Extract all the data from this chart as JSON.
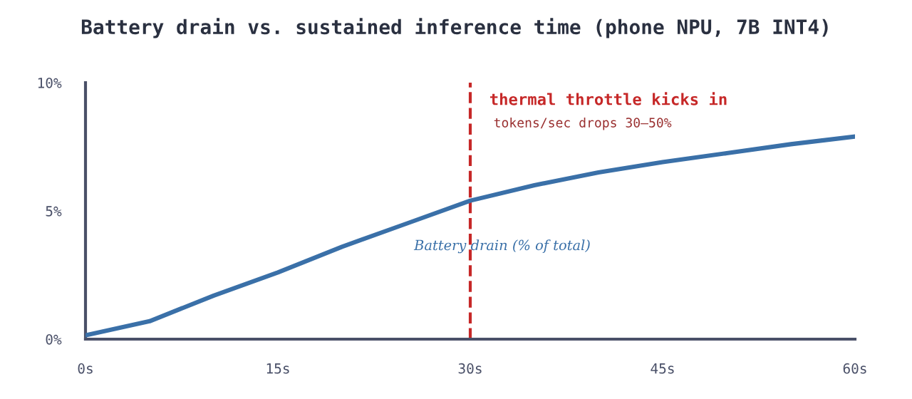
{
  "chart_data": {
    "type": "line",
    "title": "Battery drain vs. sustained inference time (phone NPU, 7B INT4)",
    "x": [
      0,
      5,
      10,
      15,
      20,
      25,
      30,
      35,
      40,
      45,
      50,
      55,
      60
    ],
    "series": [
      {
        "name": "Battery drain (% of total)",
        "color": "#3a70a8",
        "values": [
          0.15,
          0.7,
          1.7,
          2.6,
          3.6,
          4.5,
          5.4,
          6.0,
          6.5,
          6.9,
          7.25,
          7.6,
          7.9
        ]
      }
    ],
    "xlim": [
      0,
      60
    ],
    "ylim": [
      0,
      10
    ],
    "xticks": [
      {
        "value": 0,
        "label": "0s"
      },
      {
        "value": 15,
        "label": "15s"
      },
      {
        "value": 30,
        "label": "30s"
      },
      {
        "value": 45,
        "label": "45s"
      },
      {
        "value": 60,
        "label": "60s"
      }
    ],
    "yticks": [
      {
        "value": 0,
        "label": "0%"
      },
      {
        "value": 5,
        "label": "5%"
      },
      {
        "value": 10,
        "label": "10%"
      }
    ],
    "ref_lines": [
      {
        "axis": "x",
        "value": 30,
        "label": "thermal throttle kicks in",
        "color": "#c62828",
        "line_style": "dashed"
      }
    ],
    "annotations": [
      "tokens/sec drops 30–50%"
    ],
    "grid": false,
    "legend": false,
    "marker": "none",
    "line_style": "solid"
  }
}
